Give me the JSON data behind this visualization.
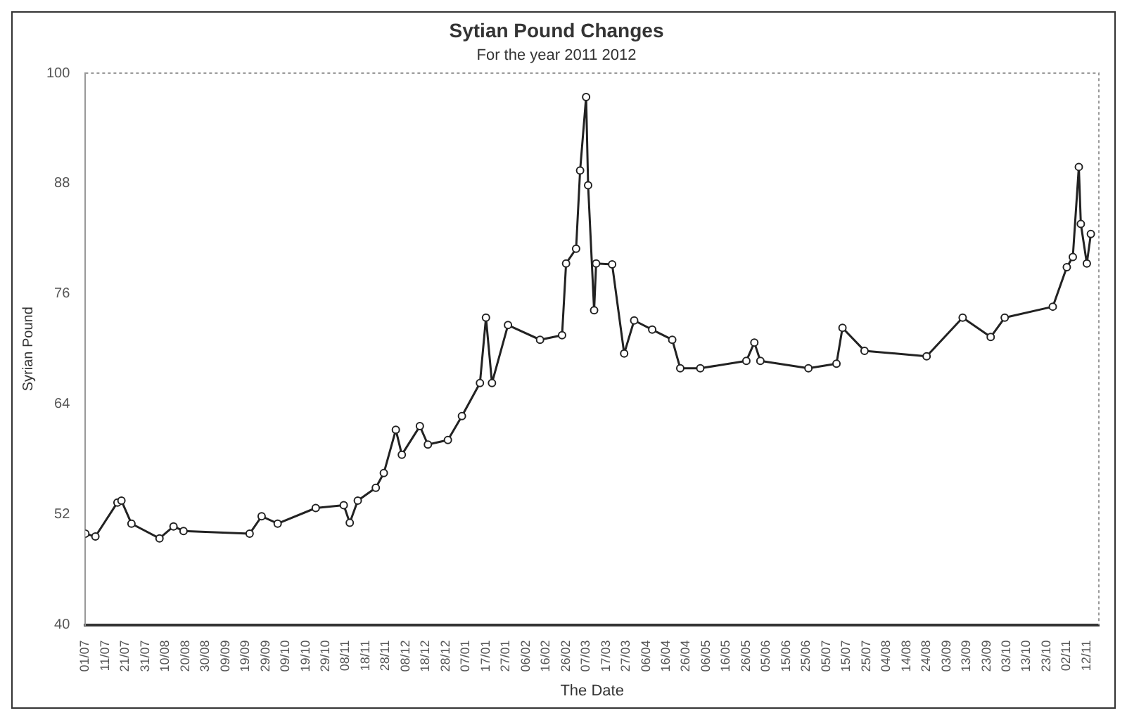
{
  "chart_data": {
    "type": "line",
    "title": "Sytian Pound Changes",
    "subtitle": "For the year 2011 2012",
    "xlabel": "The Date",
    "ylabel": "Syrian Pound",
    "x": [
      "2011-07-01",
      "2011-07-06",
      "2011-07-17",
      "2011-07-19",
      "2011-07-24",
      "2011-08-07",
      "2011-08-14",
      "2011-08-19",
      "2011-09-21",
      "2011-09-27",
      "2011-10-05",
      "2011-10-24",
      "2011-11-07",
      "2011-11-10",
      "2011-11-14",
      "2011-11-23",
      "2011-11-27",
      "2011-12-03",
      "2011-12-06",
      "2011-12-15",
      "2011-12-19",
      "2011-12-29",
      "2012-01-05",
      "2012-01-14",
      "2012-01-17",
      "2012-01-20",
      "2012-01-28",
      "2012-02-13",
      "2012-02-24",
      "2012-02-26",
      "2012-03-02",
      "2012-03-04",
      "2012-03-07",
      "2012-03-08",
      "2012-03-11",
      "2012-03-12",
      "2012-03-20",
      "2012-03-26",
      "2012-03-31",
      "2012-04-09",
      "2012-04-19",
      "2012-04-23",
      "2012-05-03",
      "2012-05-26",
      "2012-05-30",
      "2012-06-02",
      "2012-06-26",
      "2012-07-10",
      "2012-07-13",
      "2012-07-24",
      "2012-08-24",
      "2012-09-11",
      "2012-09-25",
      "2012-10-02",
      "2012-10-26",
      "2012-11-02",
      "2012-11-05",
      "2012-11-08",
      "2012-11-09",
      "2012-11-12",
      "2012-11-14"
    ],
    "series": [
      {
        "color": "#222222",
        "values": [
          49.9,
          49.6,
          53.3,
          53.5,
          51.0,
          49.4,
          50.7,
          50.2,
          49.9,
          51.8,
          51.0,
          52.7,
          53.0,
          51.1,
          53.5,
          54.9,
          56.5,
          61.2,
          58.5,
          61.6,
          59.6,
          60.1,
          62.7,
          66.3,
          73.4,
          66.3,
          72.6,
          71.0,
          71.5,
          79.3,
          80.9,
          89.4,
          97.4,
          87.8,
          74.2,
          79.3,
          79.2,
          69.5,
          73.1,
          72.1,
          71.0,
          67.9,
          67.9,
          68.7,
          70.7,
          68.7,
          67.9,
          68.4,
          72.3,
          69.8,
          69.2,
          73.4,
          71.3,
          73.4,
          74.6,
          78.9,
          80.0,
          89.8,
          83.6,
          79.3,
          82.5
        ]
      }
    ],
    "xlim": [
      "2011-07-01",
      "2012-11-18"
    ],
    "xticks": [
      {
        "value": "2011-07-01",
        "label": "01/07"
      },
      {
        "value": "2011-07-11",
        "label": "11/07"
      },
      {
        "value": "2011-07-21",
        "label": "21/07"
      },
      {
        "value": "2011-07-31",
        "label": "31/07"
      },
      {
        "value": "2011-08-10",
        "label": "10/08"
      },
      {
        "value": "2011-08-20",
        "label": "20/08"
      },
      {
        "value": "2011-08-30",
        "label": "30/08"
      },
      {
        "value": "2011-09-09",
        "label": "09/09"
      },
      {
        "value": "2011-09-19",
        "label": "19/09"
      },
      {
        "value": "2011-09-29",
        "label": "29/09"
      },
      {
        "value": "2011-10-09",
        "label": "09/10"
      },
      {
        "value": "2011-10-19",
        "label": "19/10"
      },
      {
        "value": "2011-10-29",
        "label": "29/10"
      },
      {
        "value": "2011-11-08",
        "label": "08/11"
      },
      {
        "value": "2011-11-18",
        "label": "18/11"
      },
      {
        "value": "2011-11-28",
        "label": "28/11"
      },
      {
        "value": "2011-12-08",
        "label": "08/12"
      },
      {
        "value": "2011-12-18",
        "label": "18/12"
      },
      {
        "value": "2011-12-28",
        "label": "28/12"
      },
      {
        "value": "2012-01-07",
        "label": "07/01"
      },
      {
        "value": "2012-01-17",
        "label": "17/01"
      },
      {
        "value": "2012-01-27",
        "label": "27/01"
      },
      {
        "value": "2012-02-06",
        "label": "06/02"
      },
      {
        "value": "2012-02-16",
        "label": "16/02"
      },
      {
        "value": "2012-02-26",
        "label": "26/02"
      },
      {
        "value": "2012-03-07",
        "label": "07/03"
      },
      {
        "value": "2012-03-17",
        "label": "17/03"
      },
      {
        "value": "2012-03-27",
        "label": "27/03"
      },
      {
        "value": "2012-04-06",
        "label": "06/04"
      },
      {
        "value": "2012-04-16",
        "label": "16/04"
      },
      {
        "value": "2012-04-26",
        "label": "26/04"
      },
      {
        "value": "2012-05-06",
        "label": "06/05"
      },
      {
        "value": "2012-05-16",
        "label": "16/05"
      },
      {
        "value": "2012-05-26",
        "label": "26/05"
      },
      {
        "value": "2012-06-05",
        "label": "05/06"
      },
      {
        "value": "2012-06-15",
        "label": "15/06"
      },
      {
        "value": "2012-06-25",
        "label": "25/06"
      },
      {
        "value": "2012-07-05",
        "label": "05/07"
      },
      {
        "value": "2012-07-15",
        "label": "15/07"
      },
      {
        "value": "2012-07-25",
        "label": "25/07"
      },
      {
        "value": "2012-08-04",
        "label": "04/08"
      },
      {
        "value": "2012-08-14",
        "label": "14/08"
      },
      {
        "value": "2012-08-24",
        "label": "24/08"
      },
      {
        "value": "2012-09-03",
        "label": "03/09"
      },
      {
        "value": "2012-09-13",
        "label": "13/09"
      },
      {
        "value": "2012-09-23",
        "label": "23/09"
      },
      {
        "value": "2012-10-03",
        "label": "03/10"
      },
      {
        "value": "2012-10-13",
        "label": "13/10"
      },
      {
        "value": "2012-10-23",
        "label": "23/10"
      },
      {
        "value": "2012-11-02",
        "label": "02/11"
      },
      {
        "value": "2012-11-12",
        "label": "12/11"
      }
    ],
    "ylim": [
      40,
      100
    ],
    "yticks": [
      40,
      52,
      64,
      76,
      88,
      100
    ],
    "marker": "circle",
    "line_style": "solid",
    "grid": false,
    "legend": false
  }
}
